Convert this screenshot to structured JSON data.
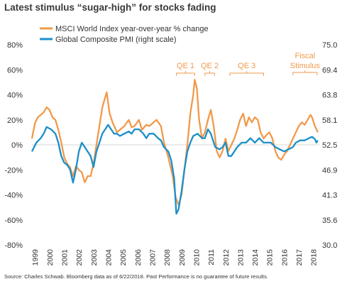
{
  "title": "Latest stimulus “sugar-high” for stocks fading",
  "source": "Source: Charles Schwab. Bloomberg data as of 6/22/2018. Past Performance is no guarantee of future results.",
  "colors": {
    "msci": "#f2994a",
    "pmi": "#1b8fc9",
    "zero_line": "#aaaaaa",
    "annotation": "#f2994a"
  },
  "chart_data": {
    "type": "line",
    "title": "Latest stimulus “sugar-high” for stocks fading",
    "legend_position": "top-left",
    "grid": false,
    "x_range": [
      1999.0,
      2018.6
    ],
    "x_ticks": [
      "1999",
      "2000",
      "2001",
      "2002",
      "2003",
      "2004",
      "2005",
      "2006",
      "2007",
      "2008",
      "2009",
      "2010",
      "2011",
      "2012",
      "2013",
      "2014",
      "2015",
      "2016",
      "2017",
      "2018"
    ],
    "left_axis": {
      "range": [
        -80,
        80
      ],
      "ticks": [
        "80%",
        "60%",
        "40%",
        "20%",
        "0%",
        "-20%",
        "-40%",
        "-60%",
        "-80%"
      ],
      "tick_values": [
        80,
        60,
        40,
        20,
        0,
        -20,
        -40,
        -60,
        -80
      ]
    },
    "right_axis": {
      "range": [
        30.0,
        75.0
      ],
      "ticks": [
        "75.0",
        "69.4",
        "63.8",
        "58.1",
        "52.5",
        "46.9",
        "41.3",
        "35.6",
        "30.0"
      ]
    },
    "series": [
      {
        "name": "MSCI World Index year-over-year % change",
        "axis": "left",
        "points": [
          [
            1999.0,
            5
          ],
          [
            1999.2,
            17
          ],
          [
            1999.4,
            22
          ],
          [
            1999.6,
            24
          ],
          [
            1999.8,
            26
          ],
          [
            2000.0,
            30
          ],
          [
            2000.2,
            28
          ],
          [
            2000.4,
            22
          ],
          [
            2000.6,
            20
          ],
          [
            2000.8,
            12
          ],
          [
            2001.0,
            2
          ],
          [
            2001.2,
            -10
          ],
          [
            2001.4,
            -15
          ],
          [
            2001.6,
            -18
          ],
          [
            2001.8,
            -25
          ],
          [
            2002.0,
            -17
          ],
          [
            2002.2,
            -20
          ],
          [
            2002.4,
            -22
          ],
          [
            2002.6,
            -30
          ],
          [
            2002.8,
            -25
          ],
          [
            2003.0,
            -25
          ],
          [
            2003.2,
            -15
          ],
          [
            2003.4,
            0
          ],
          [
            2003.6,
            15
          ],
          [
            2003.8,
            30
          ],
          [
            2004.0,
            38
          ],
          [
            2004.1,
            42
          ],
          [
            2004.3,
            25
          ],
          [
            2004.5,
            18
          ],
          [
            2004.8,
            10
          ],
          [
            2005.0,
            12
          ],
          [
            2005.3,
            15
          ],
          [
            2005.6,
            20
          ],
          [
            2005.8,
            14
          ],
          [
            2006.0,
            15
          ],
          [
            2006.3,
            20
          ],
          [
            2006.5,
            12
          ],
          [
            2006.8,
            16
          ],
          [
            2007.0,
            15
          ],
          [
            2007.3,
            18
          ],
          [
            2007.5,
            20
          ],
          [
            2007.8,
            15
          ],
          [
            2008.0,
            2
          ],
          [
            2008.3,
            -10
          ],
          [
            2008.6,
            -25
          ],
          [
            2008.8,
            -42
          ],
          [
            2009.0,
            -48
          ],
          [
            2009.2,
            -40
          ],
          [
            2009.4,
            -20
          ],
          [
            2009.6,
            0
          ],
          [
            2009.8,
            25
          ],
          [
            2010.0,
            40
          ],
          [
            2010.1,
            52
          ],
          [
            2010.25,
            45
          ],
          [
            2010.4,
            20
          ],
          [
            2010.6,
            5
          ],
          [
            2010.8,
            10
          ],
          [
            2011.0,
            20
          ],
          [
            2011.2,
            28
          ],
          [
            2011.4,
            15
          ],
          [
            2011.6,
            -5
          ],
          [
            2011.8,
            -10
          ],
          [
            2012.0,
            -5
          ],
          [
            2012.2,
            5
          ],
          [
            2012.4,
            -5
          ],
          [
            2012.6,
            0
          ],
          [
            2012.8,
            5
          ],
          [
            2013.0,
            12
          ],
          [
            2013.2,
            20
          ],
          [
            2013.4,
            25
          ],
          [
            2013.6,
            15
          ],
          [
            2013.8,
            22
          ],
          [
            2014.0,
            18
          ],
          [
            2014.2,
            22
          ],
          [
            2014.4,
            20
          ],
          [
            2014.6,
            10
          ],
          [
            2014.8,
            5
          ],
          [
            2015.0,
            8
          ],
          [
            2015.2,
            10
          ],
          [
            2015.4,
            5
          ],
          [
            2015.6,
            -5
          ],
          [
            2015.8,
            -10
          ],
          [
            2016.0,
            -12
          ],
          [
            2016.2,
            -8
          ],
          [
            2016.4,
            -5
          ],
          [
            2016.6,
            0
          ],
          [
            2016.8,
            5
          ],
          [
            2017.0,
            10
          ],
          [
            2017.2,
            15
          ],
          [
            2017.4,
            18
          ],
          [
            2017.6,
            16
          ],
          [
            2017.8,
            20
          ],
          [
            2018.0,
            24
          ],
          [
            2018.1,
            22
          ],
          [
            2018.3,
            15
          ],
          [
            2018.5,
            10
          ]
        ]
      },
      {
        "name": "Global Composite PMI (right scale)",
        "axis": "right",
        "points": [
          [
            1999.0,
            51
          ],
          [
            1999.3,
            53
          ],
          [
            1999.6,
            54
          ],
          [
            1999.8,
            55
          ],
          [
            2000.0,
            56.5
          ],
          [
            2000.3,
            56
          ],
          [
            2000.6,
            55
          ],
          [
            2000.8,
            53
          ],
          [
            2001.0,
            50
          ],
          [
            2001.2,
            48.5
          ],
          [
            2001.4,
            48
          ],
          [
            2001.6,
            47
          ],
          [
            2001.8,
            44
          ],
          [
            2002.0,
            47
          ],
          [
            2002.2,
            51
          ],
          [
            2002.4,
            53
          ],
          [
            2002.6,
            52
          ],
          [
            2002.8,
            51
          ],
          [
            2003.0,
            50
          ],
          [
            2003.2,
            47.5
          ],
          [
            2003.4,
            51
          ],
          [
            2003.6,
            53
          ],
          [
            2003.8,
            55
          ],
          [
            2004.0,
            56
          ],
          [
            2004.2,
            57
          ],
          [
            2004.4,
            56
          ],
          [
            2004.6,
            55
          ],
          [
            2004.8,
            55
          ],
          [
            2005.0,
            54.5
          ],
          [
            2005.3,
            55
          ],
          [
            2005.6,
            55.5
          ],
          [
            2005.8,
            55
          ],
          [
            2006.0,
            56
          ],
          [
            2006.3,
            56
          ],
          [
            2006.6,
            55
          ],
          [
            2006.8,
            54
          ],
          [
            2007.0,
            55
          ],
          [
            2007.3,
            55
          ],
          [
            2007.6,
            54
          ],
          [
            2007.8,
            53.5
          ],
          [
            2008.0,
            52
          ],
          [
            2008.3,
            51
          ],
          [
            2008.5,
            49
          ],
          [
            2008.7,
            45
          ],
          [
            2008.85,
            37
          ],
          [
            2009.0,
            38
          ],
          [
            2009.2,
            42
          ],
          [
            2009.4,
            47
          ],
          [
            2009.6,
            51
          ],
          [
            2009.8,
            53
          ],
          [
            2010.0,
            54.5
          ],
          [
            2010.3,
            55
          ],
          [
            2010.6,
            54
          ],
          [
            2010.8,
            54
          ],
          [
            2011.0,
            56
          ],
          [
            2011.2,
            55
          ],
          [
            2011.5,
            52
          ],
          [
            2011.8,
            51.5
          ],
          [
            2012.0,
            52
          ],
          [
            2012.2,
            53
          ],
          [
            2012.4,
            50
          ],
          [
            2012.6,
            50
          ],
          [
            2012.8,
            51
          ],
          [
            2013.0,
            52
          ],
          [
            2013.3,
            53
          ],
          [
            2013.6,
            53
          ],
          [
            2013.9,
            54
          ],
          [
            2014.2,
            53
          ],
          [
            2014.5,
            54
          ],
          [
            2014.8,
            53
          ],
          [
            2015.0,
            53
          ],
          [
            2015.3,
            53
          ],
          [
            2015.6,
            52
          ],
          [
            2015.9,
            51.5
          ],
          [
            2016.2,
            51
          ],
          [
            2016.5,
            51.5
          ],
          [
            2016.8,
            52
          ],
          [
            2017.0,
            53
          ],
          [
            2017.3,
            53.5
          ],
          [
            2017.6,
            53.5
          ],
          [
            2017.9,
            54
          ],
          [
            2018.1,
            54.3
          ],
          [
            2018.3,
            53.8
          ],
          [
            2018.4,
            53
          ],
          [
            2018.5,
            53.5
          ]
        ]
      }
    ],
    "annotations": [
      {
        "label": "QE 1",
        "x_start": 2008.85,
        "x_end": 2010.1
      },
      {
        "label": "QE 2",
        "x_start": 2010.8,
        "x_end": 2011.45
      },
      {
        "label": "QE 3",
        "x_start": 2012.5,
        "x_end": 2014.8
      },
      {
        "label": "Fiscal",
        "label2": "Stimulus",
        "x_start": 2016.8,
        "x_end": 2018.45
      }
    ]
  }
}
